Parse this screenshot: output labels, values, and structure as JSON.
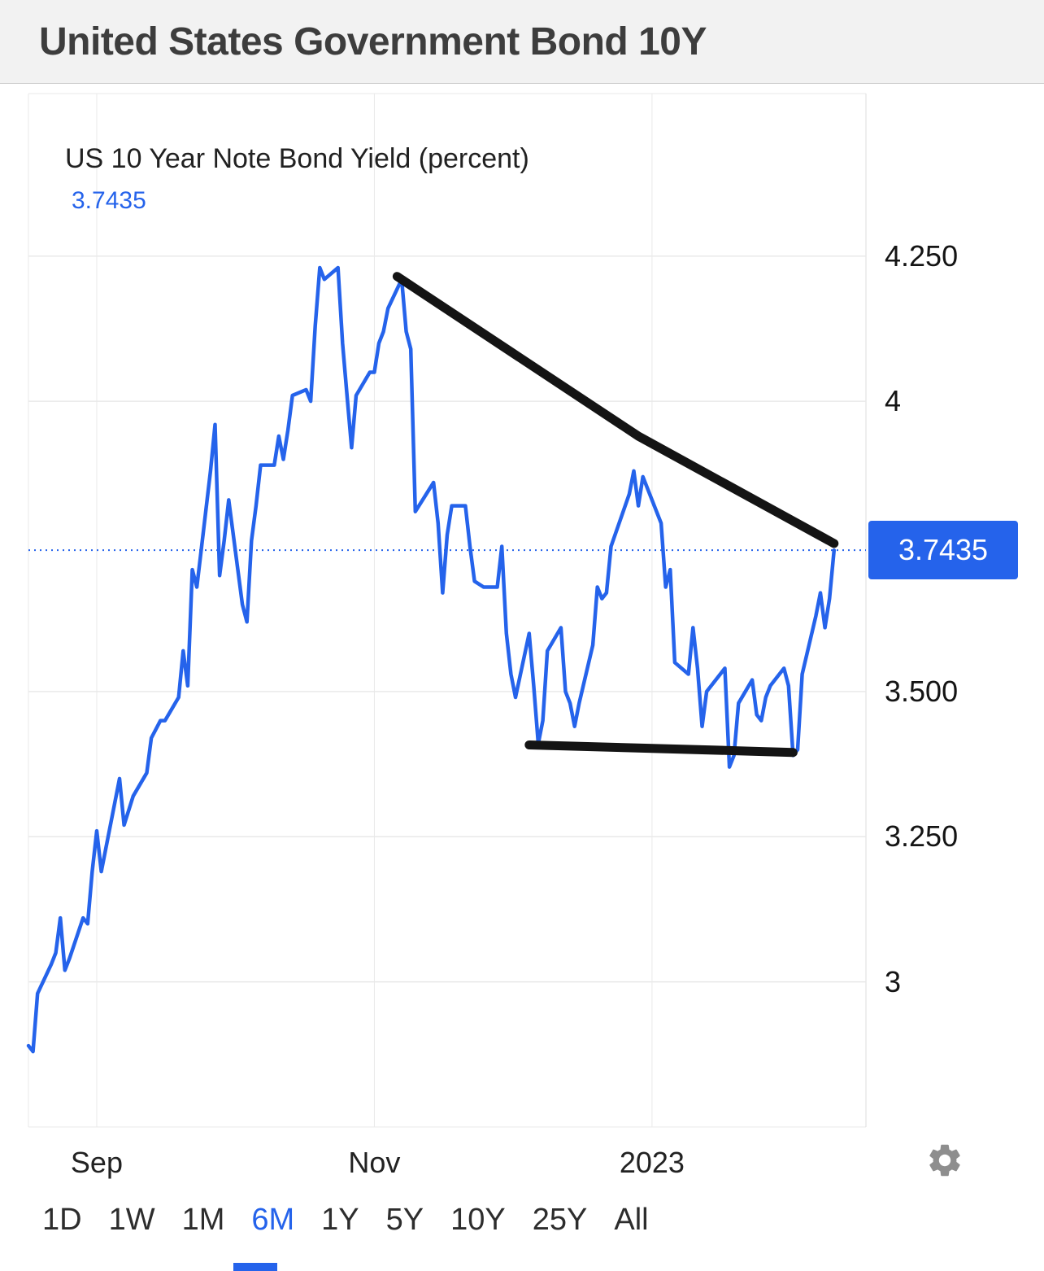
{
  "header": {
    "title": "United States Government Bond 10Y"
  },
  "chart": {
    "title": "US 10 Year Note Bond Yield (percent)",
    "value_label": "3.7435",
    "badge_label": "3.7435"
  },
  "colors": {
    "accent": "#2563eb",
    "annotation": "#141414",
    "grid": "#e9e9e9",
    "header_bg": "#f2f2f2"
  },
  "icons": {
    "settings": "gear-icon"
  },
  "range_selector": {
    "options": [
      {
        "label": "1D",
        "selected": false
      },
      {
        "label": "1W",
        "selected": false
      },
      {
        "label": "1M",
        "selected": false
      },
      {
        "label": "6M",
        "selected": true
      },
      {
        "label": "1Y",
        "selected": false
      },
      {
        "label": "5Y",
        "selected": false
      },
      {
        "label": "10Y",
        "selected": false
      },
      {
        "label": "25Y",
        "selected": false
      },
      {
        "label": "All",
        "selected": false
      }
    ]
  },
  "chart_data": {
    "type": "line",
    "title": "US 10 Year Note Bond Yield (percent)",
    "xlabel": "",
    "ylabel": "percent",
    "grid": true,
    "current_value": 3.7435,
    "xlim": [
      "2022-08-17",
      "2023-02-17"
    ],
    "ylim": [
      2.75,
      4.53
    ],
    "y_ticks": [
      {
        "value": 4.25,
        "label": "4.250"
      },
      {
        "value": 4.0,
        "label": "4"
      },
      {
        "value": 3.5,
        "label": "3.500"
      },
      {
        "value": 3.25,
        "label": "3.250"
      },
      {
        "value": 3.0,
        "label": "3"
      }
    ],
    "x_ticks": [
      {
        "date": "2022-09-01",
        "label": "Sep"
      },
      {
        "date": "2022-11-01",
        "label": "Nov"
      },
      {
        "date": "2023-01-01",
        "label": "2023"
      }
    ],
    "series": [
      {
        "name": "US 10Y yield",
        "x": [
          "2022-08-17",
          "2022-08-18",
          "2022-08-19",
          "2022-08-22",
          "2022-08-23",
          "2022-08-24",
          "2022-08-25",
          "2022-08-26",
          "2022-08-29",
          "2022-08-30",
          "2022-08-31",
          "2022-09-01",
          "2022-09-02",
          "2022-09-06",
          "2022-09-07",
          "2022-09-09",
          "2022-09-12",
          "2022-09-13",
          "2022-09-15",
          "2022-09-16",
          "2022-09-19",
          "2022-09-20",
          "2022-09-21",
          "2022-09-22",
          "2022-09-23",
          "2022-09-26",
          "2022-09-27",
          "2022-09-28",
          "2022-09-29",
          "2022-09-30",
          "2022-10-03",
          "2022-10-04",
          "2022-10-05",
          "2022-10-06",
          "2022-10-07",
          "2022-10-10",
          "2022-10-11",
          "2022-10-12",
          "2022-10-13",
          "2022-10-14",
          "2022-10-17",
          "2022-10-18",
          "2022-10-19",
          "2022-10-20",
          "2022-10-21",
          "2022-10-24",
          "2022-10-25",
          "2022-10-26",
          "2022-10-27",
          "2022-10-28",
          "2022-10-31",
          "2022-11-01",
          "2022-11-02",
          "2022-11-03",
          "2022-11-04",
          "2022-11-07",
          "2022-11-08",
          "2022-11-09",
          "2022-11-10",
          "2022-11-14",
          "2022-11-15",
          "2022-11-16",
          "2022-11-17",
          "2022-11-18",
          "2022-11-21",
          "2022-11-22",
          "2022-11-23",
          "2022-11-25",
          "2022-11-28",
          "2022-11-29",
          "2022-11-30",
          "2022-12-01",
          "2022-12-02",
          "2022-12-05",
          "2022-12-06",
          "2022-12-07",
          "2022-12-08",
          "2022-12-09",
          "2022-12-12",
          "2022-12-13",
          "2022-12-14",
          "2022-12-15",
          "2022-12-16",
          "2022-12-19",
          "2022-12-20",
          "2022-12-21",
          "2022-12-22",
          "2022-12-23",
          "2022-12-27",
          "2022-12-28",
          "2022-12-29",
          "2022-12-30",
          "2023-01-03",
          "2023-01-04",
          "2023-01-05",
          "2023-01-06",
          "2023-01-09",
          "2023-01-10",
          "2023-01-11",
          "2023-01-12",
          "2023-01-13",
          "2023-01-17",
          "2023-01-18",
          "2023-01-19",
          "2023-01-20",
          "2023-01-23",
          "2023-01-24",
          "2023-01-25",
          "2023-01-26",
          "2023-01-27",
          "2023-01-30",
          "2023-01-31",
          "2023-02-01",
          "2023-02-02",
          "2023-02-03",
          "2023-02-06",
          "2023-02-07",
          "2023-02-08",
          "2023-02-09",
          "2023-02-10"
        ],
        "values": [
          2.89,
          2.88,
          2.98,
          3.03,
          3.05,
          3.11,
          3.02,
          3.04,
          3.11,
          3.1,
          3.19,
          3.26,
          3.19,
          3.35,
          3.27,
          3.32,
          3.36,
          3.42,
          3.45,
          3.45,
          3.49,
          3.57,
          3.51,
          3.71,
          3.68,
          3.88,
          3.96,
          3.7,
          3.76,
          3.83,
          3.65,
          3.62,
          3.76,
          3.82,
          3.89,
          3.89,
          3.94,
          3.9,
          3.95,
          4.01,
          4.02,
          4.0,
          4.13,
          4.23,
          4.21,
          4.23,
          4.1,
          4.01,
          3.92,
          4.01,
          4.05,
          4.05,
          4.1,
          4.12,
          4.16,
          4.21,
          4.12,
          4.09,
          3.81,
          3.86,
          3.79,
          3.67,
          3.77,
          3.82,
          3.82,
          3.75,
          3.69,
          3.68,
          3.68,
          3.75,
          3.6,
          3.53,
          3.49,
          3.6,
          3.51,
          3.41,
          3.45,
          3.57,
          3.61,
          3.5,
          3.48,
          3.44,
          3.48,
          3.58,
          3.68,
          3.66,
          3.67,
          3.75,
          3.84,
          3.88,
          3.82,
          3.87,
          3.79,
          3.68,
          3.71,
          3.55,
          3.53,
          3.61,
          3.54,
          3.44,
          3.5,
          3.54,
          3.37,
          3.39,
          3.48,
          3.52,
          3.46,
          3.45,
          3.49,
          3.51,
          3.54,
          3.51,
          3.39,
          3.4,
          3.53,
          3.63,
          3.67,
          3.61,
          3.66,
          3.7435
        ]
      }
    ],
    "annotations": [
      {
        "name": "descending-trendline",
        "points": [
          [
            "2022-11-06",
            4.215
          ],
          [
            "2022-12-29",
            3.94
          ],
          [
            "2023-02-10",
            3.755
          ]
        ]
      },
      {
        "name": "horizontal-support-line",
        "points": [
          [
            "2022-12-05",
            3.408
          ],
          [
            "2023-01-20",
            3.398
          ],
          [
            "2023-02-01",
            3.395
          ]
        ]
      }
    ]
  }
}
